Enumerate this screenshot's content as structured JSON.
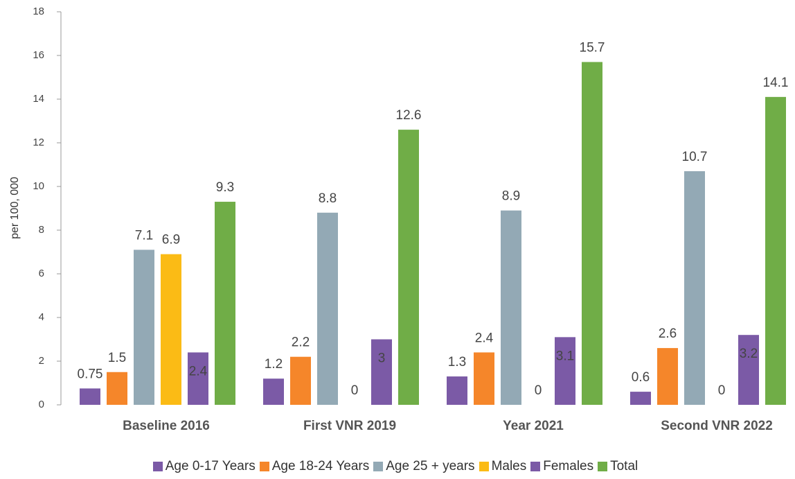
{
  "chart_data": {
    "type": "bar",
    "categories": [
      "Baseline 2016",
      "First VNR 2019",
      "Year 2021",
      "Second VNR 2022"
    ],
    "series": [
      {
        "name": "Age 0-17 Years",
        "color": "#7b5aa6",
        "values": [
          0.75,
          1.2,
          1.3,
          0.6
        ]
      },
      {
        "name": "Age 18-24 Years",
        "color": "#f5862a",
        "values": [
          1.5,
          2.2,
          2.4,
          2.6
        ]
      },
      {
        "name": "Age 25 + years",
        "color": "#93a9b5",
        "values": [
          7.1,
          8.8,
          8.9,
          10.7
        ]
      },
      {
        "name": "Males",
        "color": "#fbbb15",
        "values": [
          6.9,
          0,
          0,
          0
        ]
      },
      {
        "name": "Females",
        "color": "#7b5aa6",
        "values": [
          2.4,
          3,
          3.1,
          3.2
        ]
      },
      {
        "name": "Total",
        "color": "#70ad47",
        "values": [
          9.3,
          12.6,
          15.7,
          14.1
        ]
      }
    ],
    "ylabel": "per 100, 000",
    "ylim": [
      0,
      18
    ],
    "yticks": [
      0,
      2,
      4,
      6,
      8,
      10,
      12,
      14,
      16,
      18
    ],
    "legend": "bottom"
  }
}
